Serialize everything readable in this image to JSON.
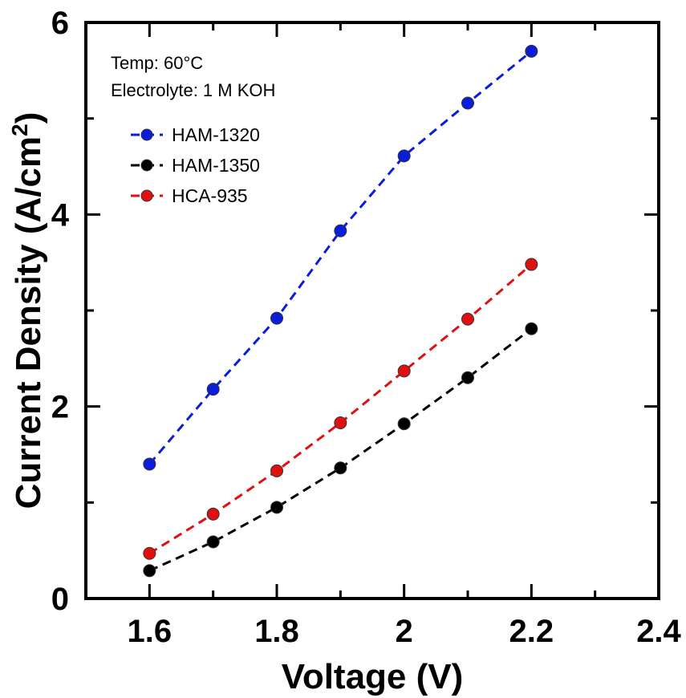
{
  "chart_data": {
    "type": "line",
    "title": "",
    "xlabel": "Voltage (V)",
    "ylabel_main": "Current Density (A/cm",
    "ylabel_sup": "2",
    "ylabel_close": ")",
    "xlim": [
      1.5,
      2.4
    ],
    "ylim": [
      0,
      6
    ],
    "xticks": [
      1.6,
      1.8,
      2.0,
      2.2,
      2.4
    ],
    "xtick_labels": [
      "1.6",
      "1.8",
      "2",
      "2.2",
      "2.4"
    ],
    "yticks": [
      0,
      2,
      4,
      6
    ],
    "ytick_labels": [
      "0",
      "2",
      "4",
      "6"
    ],
    "x": [
      1.6,
      1.7,
      1.8,
      1.9,
      2.0,
      2.1,
      2.2
    ],
    "series": [
      {
        "name": "HAM-1320",
        "color": "#0a1ed9",
        "values": [
          1.4,
          2.18,
          2.92,
          3.83,
          4.61,
          5.16,
          5.7
        ]
      },
      {
        "name": "HAM-1350",
        "color": "#000000",
        "values": [
          0.29,
          0.59,
          0.95,
          1.36,
          1.82,
          2.3,
          2.81
        ]
      },
      {
        "name": "HCA-935",
        "color": "#e01010",
        "values": [
          0.47,
          0.88,
          1.33,
          1.83,
          2.37,
          2.91,
          3.48
        ]
      }
    ],
    "annotations": [
      "Temp: 60°C",
      "Electrolyte: 1 M KOH"
    ],
    "legend_position": "top-left"
  }
}
